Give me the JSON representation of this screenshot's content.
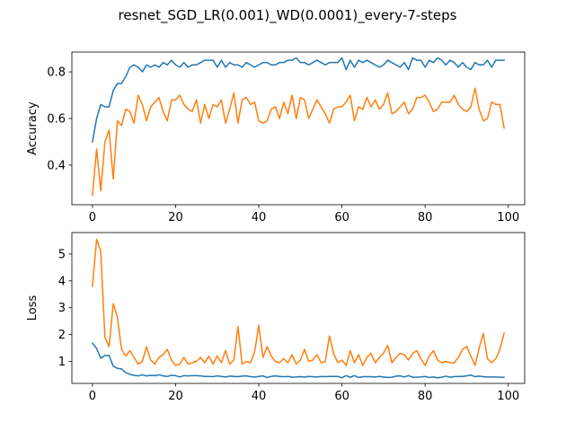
{
  "figure": {
    "title": "resnet_SGD_LR(0.001)_WD(0.0001)_every-7-steps"
  },
  "chart_data": [
    {
      "type": "line",
      "xlabel": "",
      "ylabel": "Accuracy",
      "xlim": [
        -4.95,
        103.95
      ],
      "ylim": [
        0.23,
        0.885
      ],
      "xticks": [
        0,
        20,
        40,
        60,
        80,
        100
      ],
      "xtick_labels": [
        "0",
        "20",
        "40",
        "60",
        "80",
        "100"
      ],
      "yticks": [
        0.4,
        0.6,
        0.8
      ],
      "ytick_labels": [
        "0.4",
        "0.6",
        "0.8"
      ],
      "grid": false,
      "series": [
        {
          "color": "#1f77b4",
          "values": [
            0.5,
            0.6,
            0.66,
            0.65,
            0.65,
            0.72,
            0.75,
            0.75,
            0.78,
            0.82,
            0.83,
            0.82,
            0.8,
            0.83,
            0.82,
            0.83,
            0.82,
            0.84,
            0.83,
            0.85,
            0.83,
            0.82,
            0.84,
            0.82,
            0.83,
            0.83,
            0.84,
            0.85,
            0.85,
            0.85,
            0.82,
            0.85,
            0.82,
            0.84,
            0.83,
            0.83,
            0.82,
            0.84,
            0.83,
            0.82,
            0.83,
            0.84,
            0.84,
            0.83,
            0.83,
            0.84,
            0.84,
            0.85,
            0.85,
            0.86,
            0.84,
            0.84,
            0.83,
            0.84,
            0.85,
            0.84,
            0.83,
            0.84,
            0.84,
            0.84,
            0.86,
            0.81,
            0.85,
            0.82,
            0.85,
            0.84,
            0.85,
            0.84,
            0.83,
            0.82,
            0.83,
            0.85,
            0.84,
            0.83,
            0.82,
            0.84,
            0.81,
            0.86,
            0.85,
            0.85,
            0.82,
            0.85,
            0.84,
            0.86,
            0.85,
            0.83,
            0.85,
            0.84,
            0.82,
            0.84,
            0.82,
            0.81,
            0.84,
            0.83,
            0.83,
            0.85,
            0.82,
            0.85,
            0.85,
            0.85
          ]
        },
        {
          "color": "#ff7f0e",
          "values": [
            0.27,
            0.47,
            0.29,
            0.5,
            0.55,
            0.34,
            0.59,
            0.57,
            0.64,
            0.63,
            0.58,
            0.7,
            0.66,
            0.59,
            0.65,
            0.67,
            0.69,
            0.63,
            0.59,
            0.68,
            0.68,
            0.7,
            0.66,
            0.64,
            0.63,
            0.68,
            0.58,
            0.66,
            0.6,
            0.66,
            0.65,
            0.68,
            0.58,
            0.64,
            0.71,
            0.58,
            0.68,
            0.69,
            0.66,
            0.67,
            0.59,
            0.58,
            0.59,
            0.64,
            0.65,
            0.6,
            0.67,
            0.62,
            0.7,
            0.6,
            0.69,
            0.68,
            0.6,
            0.64,
            0.68,
            0.65,
            0.62,
            0.58,
            0.64,
            0.65,
            0.65,
            0.67,
            0.7,
            0.59,
            0.65,
            0.64,
            0.69,
            0.65,
            0.68,
            0.64,
            0.66,
            0.71,
            0.62,
            0.63,
            0.65,
            0.67,
            0.62,
            0.64,
            0.69,
            0.69,
            0.7,
            0.67,
            0.63,
            0.64,
            0.67,
            0.67,
            0.67,
            0.7,
            0.66,
            0.64,
            0.63,
            0.65,
            0.73,
            0.64,
            0.59,
            0.6,
            0.67,
            0.66,
            0.66,
            0.56
          ]
        }
      ]
    },
    {
      "type": "line",
      "xlabel": "",
      "ylabel": "Loss",
      "xlim": [
        -4.95,
        103.95
      ],
      "ylim": [
        0.18,
        5.8
      ],
      "xticks": [
        0,
        20,
        40,
        60,
        80,
        100
      ],
      "xtick_labels": [
        "0",
        "20",
        "40",
        "60",
        "80",
        "100"
      ],
      "yticks": [
        1,
        2,
        3,
        4,
        5
      ],
      "ytick_labels": [
        "1",
        "2",
        "3",
        "4",
        "5"
      ],
      "grid": false,
      "series": [
        {
          "color": "#1f77b4",
          "values": [
            1.68,
            1.48,
            1.12,
            1.22,
            1.22,
            0.82,
            0.74,
            0.72,
            0.58,
            0.52,
            0.48,
            0.46,
            0.5,
            0.46,
            0.48,
            0.47,
            0.5,
            0.46,
            0.44,
            0.48,
            0.47,
            0.42,
            0.47,
            0.46,
            0.47,
            0.47,
            0.46,
            0.44,
            0.44,
            0.43,
            0.46,
            0.44,
            0.42,
            0.45,
            0.44,
            0.43,
            0.45,
            0.46,
            0.43,
            0.42,
            0.44,
            0.46,
            0.4,
            0.44,
            0.46,
            0.44,
            0.43,
            0.44,
            0.41,
            0.42,
            0.43,
            0.42,
            0.44,
            0.43,
            0.42,
            0.44,
            0.43,
            0.44,
            0.44,
            0.44,
            0.39,
            0.47,
            0.41,
            0.47,
            0.4,
            0.43,
            0.43,
            0.43,
            0.42,
            0.44,
            0.42,
            0.4,
            0.41,
            0.45,
            0.46,
            0.42,
            0.47,
            0.41,
            0.41,
            0.42,
            0.44,
            0.4,
            0.42,
            0.39,
            0.41,
            0.45,
            0.41,
            0.43,
            0.44,
            0.44,
            0.46,
            0.49,
            0.43,
            0.45,
            0.43,
            0.42,
            0.42,
            0.42,
            0.41,
            0.41
          ]
        },
        {
          "color": "#ff7f0e",
          "values": [
            3.8,
            5.55,
            5.1,
            1.9,
            1.55,
            3.15,
            2.65,
            1.45,
            1.2,
            1.4,
            1.15,
            0.9,
            1.0,
            1.55,
            1.05,
            0.9,
            1.15,
            1.25,
            1.45,
            1.05,
            0.85,
            0.9,
            1.15,
            0.9,
            0.95,
            1.0,
            1.15,
            0.95,
            1.2,
            0.9,
            1.2,
            0.95,
            1.4,
            0.9,
            1.05,
            2.3,
            0.9,
            1.0,
            0.95,
            1.35,
            2.35,
            1.15,
            1.55,
            1.2,
            1.0,
            0.95,
            1.1,
            0.95,
            1.25,
            0.9,
            1.05,
            1.45,
            1.0,
            1.05,
            1.25,
            0.95,
            1.0,
            1.95,
            1.3,
            0.95,
            1.05,
            0.85,
            1.4,
            0.95,
            1.25,
            0.85,
            1.15,
            1.3,
            0.95,
            1.15,
            1.3,
            1.6,
            0.95,
            1.15,
            1.3,
            1.25,
            1.05,
            1.3,
            1.4,
            1.1,
            0.85,
            1.2,
            1.4,
            1.05,
            0.95,
            1.0,
            0.95,
            0.95,
            1.15,
            1.45,
            1.55,
            1.2,
            0.85,
            1.5,
            2.05,
            1.1,
            0.95,
            1.1,
            1.45,
            2.05
          ]
        }
      ]
    }
  ]
}
